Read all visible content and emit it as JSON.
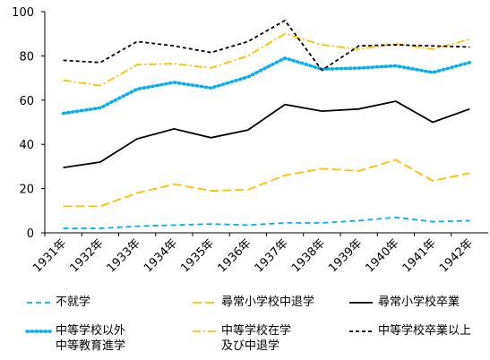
{
  "chart_data": {
    "type": "line",
    "categories": [
      "1931年",
      "1932年",
      "1933年",
      "1934年",
      "1935年",
      "1936年",
      "1937年",
      "1938年",
      "1939年",
      "1940年",
      "1941年",
      "1942年"
    ],
    "ylim": [
      0,
      100
    ],
    "yticks": [
      0,
      20,
      40,
      60,
      80,
      100
    ],
    "grid": false,
    "legend": "bottom",
    "series": [
      {
        "name": "不就学",
        "color": "#00b0f0",
        "dash": "dashed",
        "values": [
          2,
          2,
          3,
          3.5,
          4,
          3.5,
          4.5,
          4.5,
          5.5,
          7,
          5,
          5.5
        ]
      },
      {
        "name": "尋常小学校中退学",
        "color": "#ffc000",
        "dash": "longdash",
        "values": [
          12,
          12,
          18,
          22,
          19,
          19.5,
          26,
          29,
          28,
          33,
          23.5,
          27
        ]
      },
      {
        "name": "尋常小学校卒業",
        "color": "#000000",
        "dash": "solid",
        "values": [
          29.5,
          32,
          42.5,
          47,
          43,
          46.5,
          58,
          55,
          56,
          59.5,
          50,
          56
        ]
      },
      {
        "name": "中等学校以外\n中等教育進学",
        "color": "#00b0f0",
        "dash": "dotted",
        "values": [
          54,
          56.5,
          65,
          68,
          65.5,
          70.5,
          79,
          74,
          74.5,
          75.5,
          72.5,
          77
        ]
      },
      {
        "name": "中等学校在学\n及び中退学",
        "color": "#ffc000",
        "dash": "dashdot",
        "values": [
          69,
          66.5,
          76,
          76.5,
          74.5,
          80,
          90,
          85,
          83,
          85.5,
          83,
          87.5
        ]
      },
      {
        "name": "中等学校卒業以上",
        "color": "#000000",
        "dash": "shortdash",
        "values": [
          78,
          77,
          86.5,
          84.5,
          81.5,
          86.5,
          96,
          73.5,
          84.5,
          85,
          84.5,
          84
        ]
      }
    ]
  }
}
